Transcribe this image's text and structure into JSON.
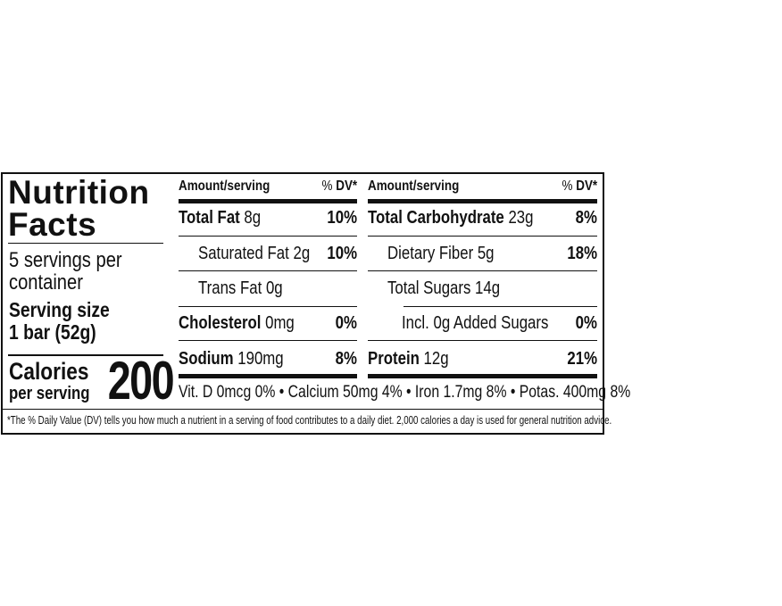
{
  "label": {
    "title_line1": "Nutrition",
    "title_line2": "Facts",
    "servings_line1": "5 servings per",
    "servings_line2": "container",
    "serving_size_label": "Serving size",
    "serving_size_value": "1 bar (52g)",
    "calories_label": "Calories",
    "per_serving_label": "per serving",
    "calories_value": "200",
    "left_column": {
      "header_amount": "Amount/serving",
      "header_dv": "% DV*",
      "rows": [
        {
          "name": "Total Fat",
          "amount": "8g",
          "dv": "10%",
          "bold": true,
          "indent": 0
        },
        {
          "name": "Saturated Fat",
          "amount": "2g",
          "dv": "10%",
          "bold": false,
          "indent": 1
        },
        {
          "name": "Trans Fat",
          "amount": "0g",
          "dv": "",
          "bold": false,
          "indent": 1
        },
        {
          "name": "Cholesterol",
          "amount": "0mg",
          "dv": "0%",
          "bold": true,
          "indent": 0
        },
        {
          "name": "Sodium",
          "amount": "190mg",
          "dv": "8%",
          "bold": true,
          "indent": 0
        }
      ]
    },
    "right_column": {
      "header_amount": "Amount/serving",
      "header_dv": "% DV*",
      "rows": [
        {
          "name": "Total Carbohydrate",
          "amount": "23g",
          "dv": "8%",
          "bold": true,
          "indent": 0
        },
        {
          "name": "Dietary Fiber",
          "amount": "5g",
          "dv": "18%",
          "bold": false,
          "indent": 1
        },
        {
          "name": "Total Sugars",
          "amount": "14g",
          "dv": "",
          "bold": false,
          "indent": 1
        },
        {
          "name": "Incl. 0g Added Sugars",
          "amount": "",
          "dv": "0%",
          "bold": false,
          "indent": 2
        },
        {
          "name": "Protein",
          "amount": "12g",
          "dv": "21%",
          "bold": true,
          "indent": 0
        }
      ]
    },
    "vitamins": "Vit. D 0mcg 0% • Calcium 50mg 4% • Iron 1.7mg 8% • Potas. 400mg 8%",
    "footnote": "*The % Daily Value (DV) tells you how much a nutrient in a serving of food contributes to a daily diet. 2,000 calories a day is used for general nutrition advice."
  }
}
